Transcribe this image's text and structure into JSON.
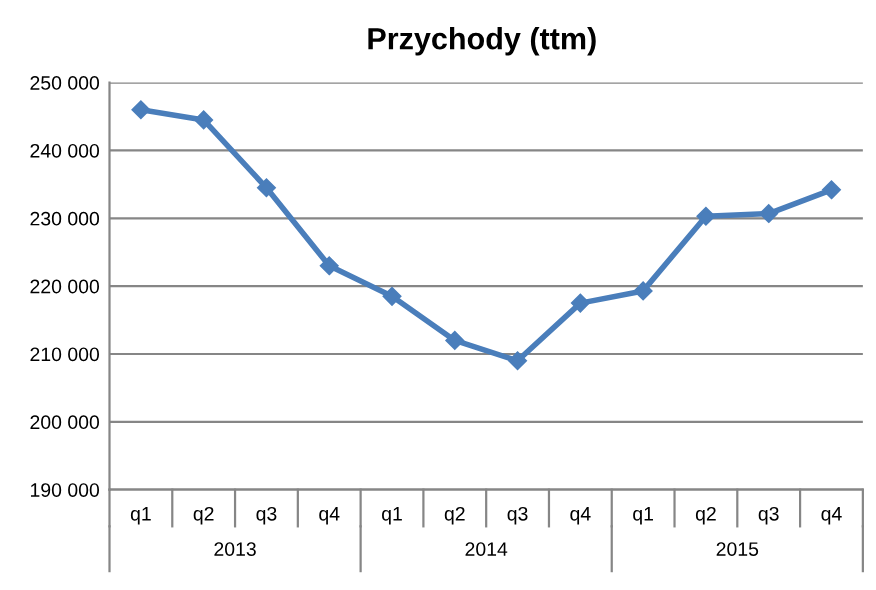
{
  "chart_data": {
    "type": "line",
    "title": "Przychody (ttm)",
    "categories": [
      "q1",
      "q2",
      "q3",
      "q4",
      "q1",
      "q2",
      "q3",
      "q4",
      "q1",
      "q2",
      "q3",
      "q4"
    ],
    "series": [
      {
        "color": "#4a7ebb",
        "values": [
          246000,
          244500,
          234500,
          223000,
          218500,
          212000,
          209000,
          217500,
          219300,
          230300,
          230700,
          234200
        ]
      }
    ],
    "ylim": [
      190000,
      250000
    ],
    "yticks": [
      {
        "value": 190000,
        "label": "190 000"
      },
      {
        "value": 200000,
        "label": "200 000"
      },
      {
        "value": 210000,
        "label": "210 000"
      },
      {
        "value": 220000,
        "label": "220 000"
      },
      {
        "value": 230000,
        "label": "230 000"
      },
      {
        "value": 240000,
        "label": "240 000"
      },
      {
        "value": 250000,
        "label": "250 000"
      }
    ],
    "grid": "y",
    "marker": "diamond",
    "line_style": "solid",
    "legend": false,
    "annotations": [
      "2013",
      "2014",
      "2015"
    ]
  }
}
